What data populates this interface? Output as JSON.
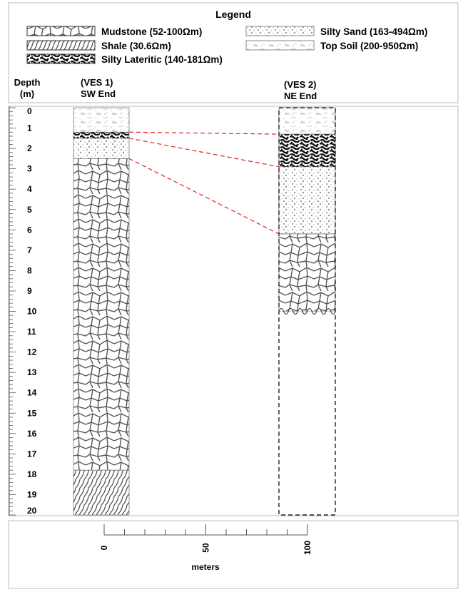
{
  "legend": {
    "title": "Legend",
    "items": [
      {
        "label": "Mudstone (52-100Ωm)",
        "pattern": "mudstone"
      },
      {
        "label": "Shale (30.6Ωm)",
        "pattern": "shale"
      },
      {
        "label": "Silty Lateritic (140-181Ωm)",
        "pattern": "lateritic"
      },
      {
        "label": "Silty Sand (163-494Ωm)",
        "pattern": "sand"
      },
      {
        "label": "Top Soil (200-950Ωm)",
        "pattern": "topsoil"
      }
    ]
  },
  "headers": {
    "depth_line1": "Depth",
    "depth_line2": "(m)",
    "ves1_line1": "(VES 1)",
    "ves1_line2": "SW End",
    "ves2_line1": "(VES 2)",
    "ves2_line2": "NE End"
  },
  "depth_ticks": [
    "0",
    "1",
    "2",
    "3",
    "4",
    "5",
    "6",
    "7",
    "8",
    "9",
    "10",
    "11",
    "12",
    "13",
    "14",
    "15",
    "16",
    "17",
    "18",
    "19",
    "20"
  ],
  "ves1_layers": [
    {
      "pattern": "topsoil",
      "top": 0,
      "bottom": 1.2
    },
    {
      "pattern": "lateritic",
      "top": 1.2,
      "bottom": 1.5
    },
    {
      "pattern": "sand",
      "top": 1.5,
      "bottom": 2.5
    },
    {
      "pattern": "mudstone",
      "top": 2.5,
      "bottom": 17.8
    },
    {
      "pattern": "shale",
      "top": 17.8,
      "bottom": 20
    }
  ],
  "ves2_layers": [
    {
      "pattern": "topsoil",
      "top": 0,
      "bottom": 1.3
    },
    {
      "pattern": "lateritic",
      "top": 1.3,
      "bottom": 2.9
    },
    {
      "pattern": "sand",
      "top": 2.9,
      "bottom": 6.2
    },
    {
      "pattern": "mudstone",
      "top": 6.2,
      "bottom": 10
    }
  ],
  "correlations": [
    {
      "from": 1.2,
      "to": 1.3
    },
    {
      "from": 1.5,
      "to": 2.9
    },
    {
      "from": 2.5,
      "to": 6.2
    }
  ],
  "scale": {
    "ticks": [
      "0",
      "50",
      "100"
    ],
    "label": "meters"
  },
  "colors": {
    "correlation": "#dd2222",
    "pattern": "#555555"
  }
}
